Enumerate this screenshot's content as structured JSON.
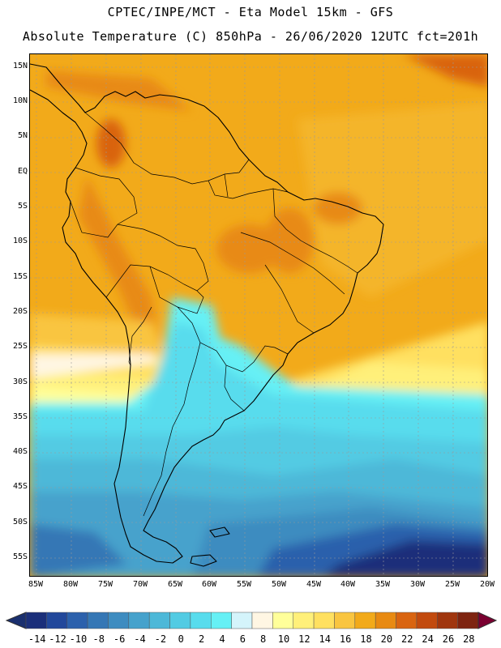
{
  "header": {
    "line1": "CPTEC/INPE/MCT -  Eta Model 15km - GFS",
    "line2": "Absolute Temperature (C) 850hPa - 26/06/2020 12UTC fct=201h"
  },
  "map": {
    "lat_labels": [
      "15N",
      "10N",
      "5N",
      "EQ",
      "5S",
      "10S",
      "15S",
      "20S",
      "25S",
      "30S",
      "35S",
      "40S",
      "45S",
      "50S",
      "55S"
    ],
    "lon_labels": [
      "85W",
      "80W",
      "75W",
      "70W",
      "65W",
      "60W",
      "55W",
      "50W",
      "45W",
      "40W",
      "35W",
      "30W",
      "25W",
      "20W"
    ],
    "lat_range": [
      15,
      -55
    ],
    "lon_range": [
      -85,
      -20
    ]
  },
  "colorbar": {
    "labels": [
      "-14",
      "-12",
      "-10",
      "-8",
      "-6",
      "-4",
      "-2",
      "0",
      "2",
      "4",
      "6",
      "8",
      "10",
      "12",
      "14",
      "16",
      "18",
      "20",
      "22",
      "24",
      "26",
      "28"
    ],
    "colors": [
      "#1b2f7a",
      "#22489b",
      "#2c61ac",
      "#3577b5",
      "#3e8cc0",
      "#46a2cc",
      "#4db8d8",
      "#52cbe3",
      "#58dced",
      "#66f0f5",
      "#d4f4fb",
      "#fff6e3",
      "#ffff9a",
      "#fff07a",
      "#ffe060",
      "#f9c540",
      "#f2aa1a",
      "#e88a12",
      "#d96410",
      "#c24a0e",
      "#a0360e",
      "#7e2410"
    ],
    "under_color": "#1a2f6e",
    "over_color": "#7a0030"
  }
}
